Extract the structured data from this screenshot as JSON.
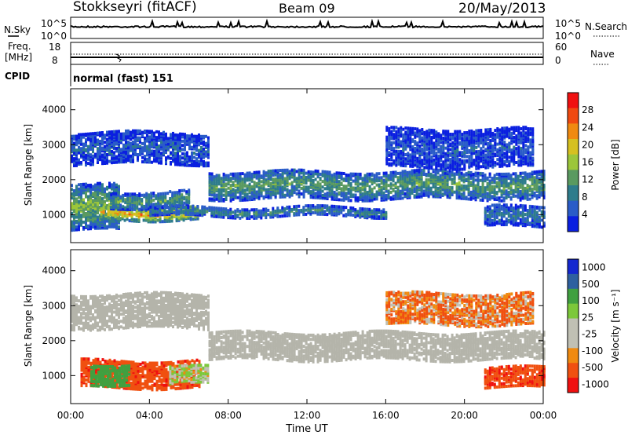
{
  "header": {
    "station": "Stokkseyri (fitACF)",
    "beam": "Beam 09",
    "date": "20/May/2013"
  },
  "noise_panel": {
    "left_label": "N.Sky",
    "left_tick_high": "10^5",
    "left_tick_low": "10^0",
    "right_tick_high": "10^5",
    "right_tick_low": "10^0",
    "right_label": "N.Search"
  },
  "freq_panel": {
    "left_label_line1": "Freq.",
    "left_label_line2": "[MHz]",
    "left_tick_high": "18",
    "left_tick_low": "8",
    "right_tick_high": "60",
    "right_tick_low": "0",
    "right_label": "Nave",
    "cpid_label": "CPID",
    "cpid_value": "normal (fast) 151"
  },
  "colors": {
    "power": [
      "#0a1fe0",
      "#2a5cc8",
      "#2e7c8c",
      "#5a9a60",
      "#9cc63a",
      "#d6c020",
      "#f08a10",
      "#f04a10",
      "#f01010"
    ],
    "velocity": [
      "#f01010",
      "#f05010",
      "#f08a10",
      "#c0c0b4",
      "#c0c0b4",
      "#7cc83a",
      "#40a040",
      "#2e60a0",
      "#1428d0"
    ],
    "ground_scatter": "#b4b4aa"
  },
  "chart_data": [
    {
      "type": "heatmap",
      "name": "power",
      "ylabel": "Slant Range [km]",
      "yticks": [
        "1000",
        "2000",
        "3000",
        "4000"
      ],
      "ylim": [
        200,
        4600
      ],
      "colorbar": {
        "label": "Power [dB]",
        "ticks": [
          "4",
          "8",
          "12",
          "16",
          "20",
          "24",
          "28"
        ],
        "range": [
          0,
          31
        ]
      },
      "bands": [
        {
          "t": [
            0,
            2.5
          ],
          "range": [
            600,
            1900
          ],
          "value": 14
        },
        {
          "t": [
            1.5,
            6.5
          ],
          "range": [
            900,
            1300
          ],
          "value": 22
        },
        {
          "t": [
            2,
            6
          ],
          "range": [
            1250,
            1700
          ],
          "value": 12
        },
        {
          "t": [
            4,
            16
          ],
          "range": [
            1000,
            1250
          ],
          "value": 10
        },
        {
          "t": [
            7,
            24
          ],
          "range": [
            1500,
            2300
          ],
          "value": 12
        },
        {
          "t": [
            0,
            7
          ],
          "range": [
            2500,
            3400
          ],
          "value": 6
        },
        {
          "t": [
            16,
            23.5
          ],
          "range": [
            2400,
            3500
          ],
          "value": 5
        },
        {
          "t": [
            21,
            24
          ],
          "range": [
            700,
            1300
          ],
          "value": 8
        }
      ]
    },
    {
      "type": "heatmap",
      "name": "velocity",
      "ylabel": "Slant Range [km]",
      "yticks": [
        "1000",
        "2000",
        "3000",
        "4000"
      ],
      "ylim": [
        200,
        4600
      ],
      "colorbar": {
        "label": "Velocity [m s⁻¹]",
        "ticks": [
          "1000",
          "500",
          "100",
          "25",
          "-25",
          "-100",
          "-500",
          "-1000"
        ]
      },
      "xticks": [
        "00:00",
        "04:00",
        "08:00",
        "12:00",
        "16:00",
        "20:00",
        "00:00"
      ],
      "xlabel": "Time UT",
      "xlim": [
        0,
        24
      ],
      "bands": [
        {
          "t": [
            7,
            24
          ],
          "range": [
            1500,
            2300
          ],
          "value": 0
        },
        {
          "t": [
            0.5,
            6.5
          ],
          "range": [
            700,
            1500
          ],
          "value": -400
        },
        {
          "t": [
            5,
            7
          ],
          "range": [
            800,
            1300
          ],
          "value": 100
        },
        {
          "t": [
            1,
            3
          ],
          "range": [
            800,
            1400
          ],
          "value": 700
        },
        {
          "t": [
            0,
            7
          ],
          "range": [
            2400,
            3400
          ],
          "value": 0
        },
        {
          "t": [
            16,
            23.5
          ],
          "range": [
            2500,
            3400
          ],
          "value": -100
        },
        {
          "t": [
            21,
            24
          ],
          "range": [
            700,
            1300
          ],
          "value": -400
        }
      ]
    }
  ]
}
